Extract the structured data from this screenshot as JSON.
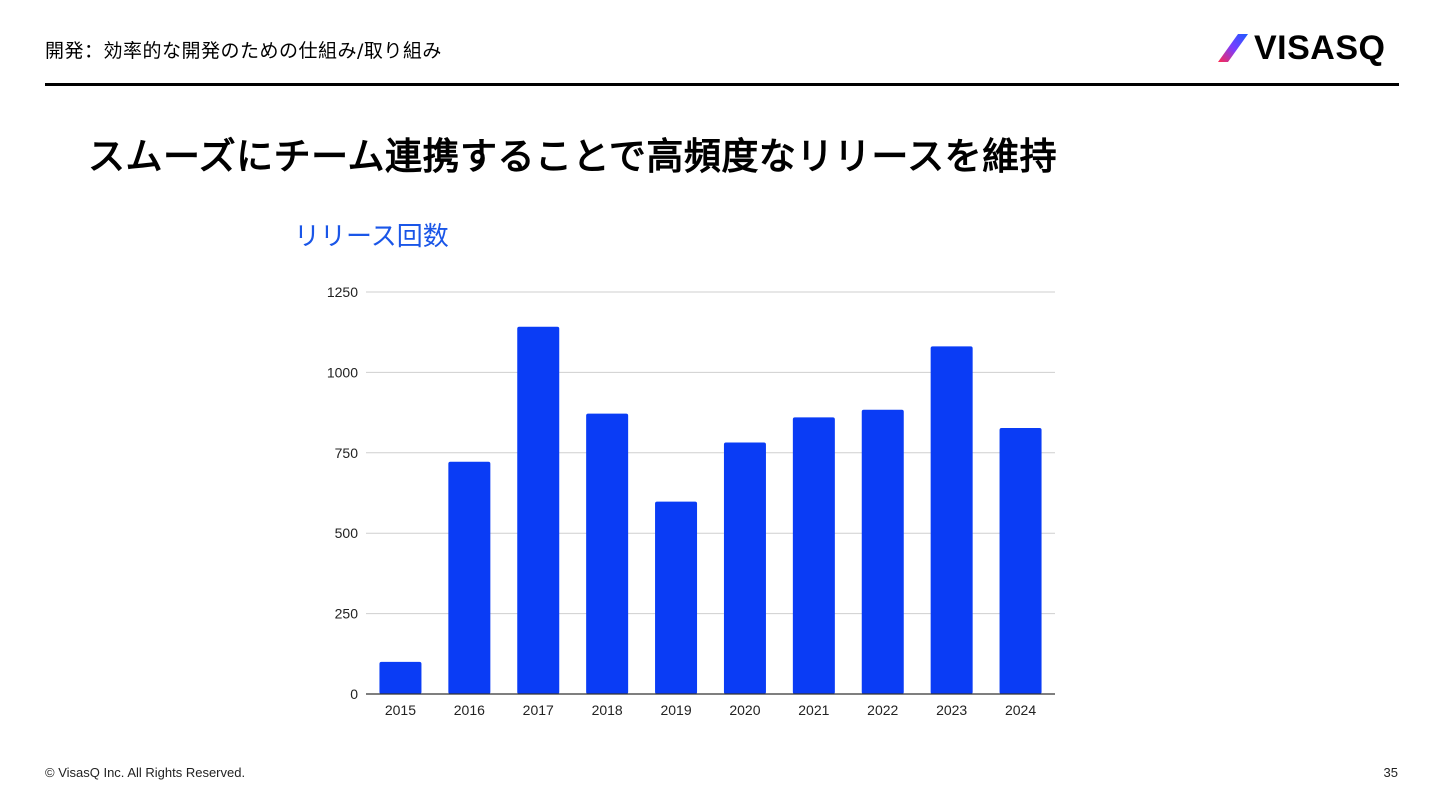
{
  "header": {
    "title": "開発：効率的な開発のための仕組み/取り組み",
    "logo_text": "VISASQ"
  },
  "main": {
    "title": "スムーズにチーム連携することで高頻度なリリースを維持"
  },
  "chart_data": {
    "type": "bar",
    "title": "リリース回数",
    "xlabel": "",
    "ylabel": "",
    "categories": [
      "2015",
      "2016",
      "2017",
      "2018",
      "2019",
      "2020",
      "2021",
      "2022",
      "2023",
      "2024"
    ],
    "values": [
      100,
      722,
      1142,
      872,
      598,
      782,
      860,
      884,
      1081,
      827
    ],
    "ylim": [
      0,
      1250
    ],
    "yticks": [
      "0",
      "250",
      "500",
      "750",
      "1000",
      "1250"
    ],
    "grid": true,
    "bar_color": "#0a3cf5",
    "title_color": "#1a56e8"
  },
  "footer": {
    "copyright": "© VisasQ Inc. All Rights Reserved.",
    "page_number": "35"
  }
}
